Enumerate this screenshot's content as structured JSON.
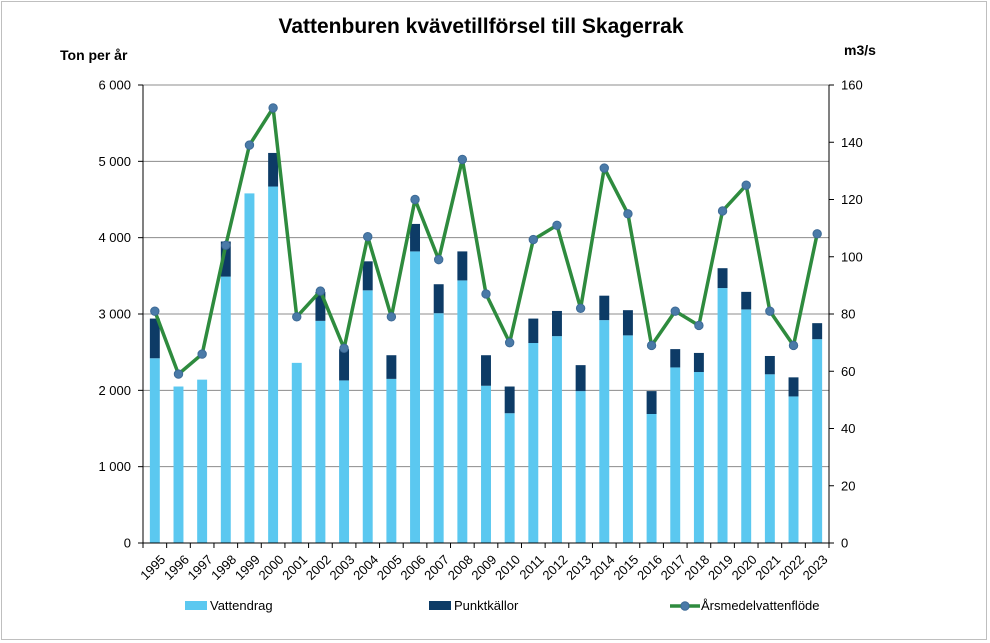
{
  "chart_data": {
    "type": "bar",
    "title": "Vattenburen kvävetillförsel till Skagerrak",
    "ylabel": "Ton per år",
    "y2label": "m3/s",
    "ylim": [
      0,
      6000
    ],
    "y2lim": [
      0,
      160
    ],
    "yticks": [
      0,
      1000,
      2000,
      3000,
      4000,
      5000,
      6000
    ],
    "ytick_labels": [
      "0",
      "1 000",
      "2 000",
      "3 000",
      "4 000",
      "5 000",
      "6 000"
    ],
    "y2ticks": [
      0,
      20,
      40,
      60,
      80,
      100,
      120,
      140,
      160
    ],
    "y2tick_labels": [
      "0",
      "20",
      "40",
      "60",
      "80",
      "100",
      "120",
      "140",
      "160"
    ],
    "grid": true,
    "stacked": true,
    "legend_position": "bottom",
    "categories": [
      "1995",
      "1996",
      "1997",
      "1998",
      "1999",
      "2000",
      "2001",
      "2002",
      "2003",
      "2004",
      "2005",
      "2006",
      "2007",
      "2008",
      "2009",
      "2010",
      "2011",
      "2012",
      "2013",
      "2014",
      "2015",
      "2016",
      "2017",
      "2018",
      "2019",
      "2020",
      "2021",
      "2022",
      "2023"
    ],
    "series": [
      {
        "name": "Vattendrag",
        "type": "bar",
        "axis": "left",
        "color": "#5bc8f0",
        "values": [
          2420,
          2050,
          2140,
          3490,
          4580,
          4670,
          2360,
          2910,
          2130,
          3310,
          2150,
          3820,
          3010,
          3440,
          2060,
          1700,
          2620,
          2710,
          1990,
          2920,
          2720,
          1690,
          2300,
          2240,
          3340,
          3060,
          2210,
          1920,
          2670
        ]
      },
      {
        "name": "Punktkällor",
        "type": "bar",
        "axis": "left",
        "color": "#0d3b66",
        "values": [
          520,
          0,
          0,
          460,
          0,
          440,
          0,
          380,
          410,
          380,
          310,
          360,
          380,
          380,
          400,
          350,
          320,
          330,
          340,
          320,
          330,
          300,
          240,
          250,
          260,
          230,
          240,
          250,
          210
        ]
      },
      {
        "name": "Årsmedelvattenflöde",
        "type": "line",
        "axis": "right",
        "color": "#2e8b3e",
        "marker_color": "#4a7aa8",
        "values": [
          81,
          59,
          66,
          104,
          139,
          152,
          79,
          88,
          68,
          107,
          79,
          120,
          99,
          134,
          87,
          70,
          106,
          111,
          82,
          131,
          115,
          69,
          81,
          76,
          116,
          125,
          81,
          69,
          108
        ]
      }
    ]
  }
}
